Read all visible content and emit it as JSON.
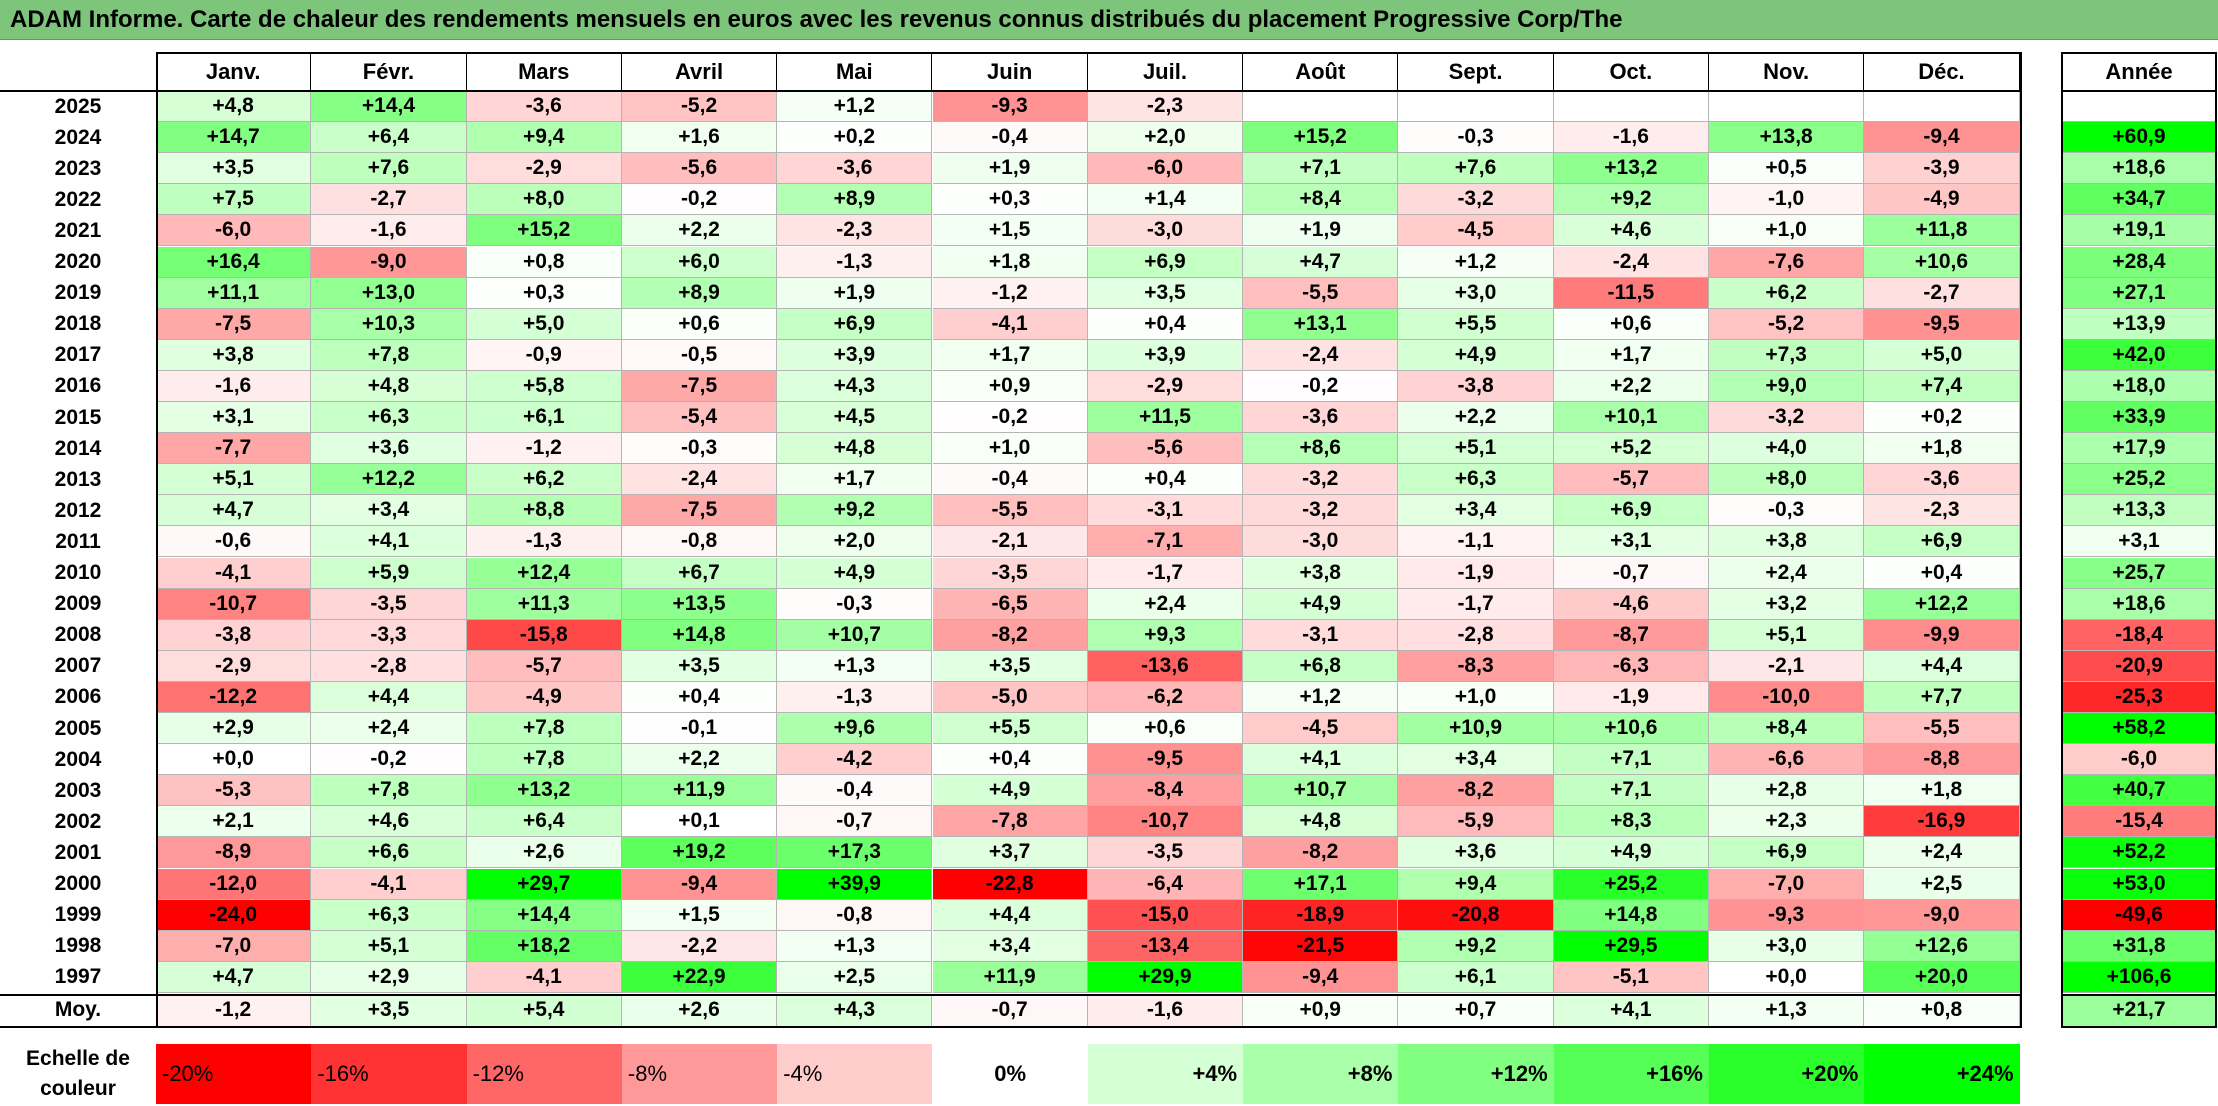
{
  "title": "ADAM Informe. Carte de chaleur des rendements mensuels en euros avec les revenus connus distribués du placement Progressive Corp/The",
  "colors": {
    "title_bg": "#7dc57a",
    "negative_max": "#ff0000",
    "neutral": "#ffffff",
    "positive_max": "#00ff00",
    "grid": "#b5b5b5"
  },
  "chart_data": {
    "type": "heatmap",
    "title": "ADAM Informe. Carte de chaleur des rendements mensuels en euros avec les revenus connus distribués du placement Progressive Corp/The",
    "columns": [
      "Janv.",
      "Févr.",
      "Mars",
      "Avril",
      "Mai",
      "Juin",
      "Juil.",
      "Août",
      "Sept.",
      "Oct.",
      "Nov.",
      "Déc."
    ],
    "year_header": "Année",
    "rows": [
      {
        "label": "2025",
        "values": [
          "+4,8",
          "+14,4",
          "-3,6",
          "-5,2",
          "+1,2",
          "-9,3",
          "-2,3",
          "",
          "",
          "",
          "",
          ""
        ],
        "year": ""
      },
      {
        "label": "2024",
        "values": [
          "+14,7",
          "+6,4",
          "+9,4",
          "+1,6",
          "+0,2",
          "-0,4",
          "+2,0",
          "+15,2",
          "-0,3",
          "-1,6",
          "+13,8",
          "-9,4"
        ],
        "year": "+60,9"
      },
      {
        "label": "2023",
        "values": [
          "+3,5",
          "+7,6",
          "-2,9",
          "-5,6",
          "-3,6",
          "+1,9",
          "-6,0",
          "+7,1",
          "+7,6",
          "+13,2",
          "+0,5",
          "-3,9"
        ],
        "year": "+18,6"
      },
      {
        "label": "2022",
        "values": [
          "+7,5",
          "-2,7",
          "+8,0",
          "-0,2",
          "+8,9",
          "+0,3",
          "+1,4",
          "+8,4",
          "-3,2",
          "+9,2",
          "-1,0",
          "-4,9"
        ],
        "year": "+34,7"
      },
      {
        "label": "2021",
        "values": [
          "-6,0",
          "-1,6",
          "+15,2",
          "+2,2",
          "-2,3",
          "+1,5",
          "-3,0",
          "+1,9",
          "-4,5",
          "+4,6",
          "+1,0",
          "+11,8"
        ],
        "year": "+19,1"
      },
      {
        "label": "2020",
        "values": [
          "+16,4",
          "-9,0",
          "+0,8",
          "+6,0",
          "-1,3",
          "+1,8",
          "+6,9",
          "+4,7",
          "+1,2",
          "-2,4",
          "-7,6",
          "+10,6"
        ],
        "year": "+28,4"
      },
      {
        "label": "2019",
        "values": [
          "+11,1",
          "+13,0",
          "+0,3",
          "+8,9",
          "+1,9",
          "-1,2",
          "+3,5",
          "-5,5",
          "+3,0",
          "-11,5",
          "+6,2",
          "-2,7"
        ],
        "year": "+27,1"
      },
      {
        "label": "2018",
        "values": [
          "-7,5",
          "+10,3",
          "+5,0",
          "+0,6",
          "+6,9",
          "-4,1",
          "+0,4",
          "+13,1",
          "+5,5",
          "+0,6",
          "-5,2",
          "-9,5"
        ],
        "year": "+13,9"
      },
      {
        "label": "2017",
        "values": [
          "+3,8",
          "+7,8",
          "-0,9",
          "-0,5",
          "+3,9",
          "+1,7",
          "+3,9",
          "-2,4",
          "+4,9",
          "+1,7",
          "+7,3",
          "+5,0"
        ],
        "year": "+42,0"
      },
      {
        "label": "2016",
        "values": [
          "-1,6",
          "+4,8",
          "+5,8",
          "-7,5",
          "+4,3",
          "+0,9",
          "-2,9",
          "-0,2",
          "-3,8",
          "+2,2",
          "+9,0",
          "+7,4"
        ],
        "year": "+18,0"
      },
      {
        "label": "2015",
        "values": [
          "+3,1",
          "+6,3",
          "+6,1",
          "-5,4",
          "+4,5",
          "-0,2",
          "+11,5",
          "-3,6",
          "+2,2",
          "+10,1",
          "-3,2",
          "+0,2"
        ],
        "year": "+33,9"
      },
      {
        "label": "2014",
        "values": [
          "-7,7",
          "+3,6",
          "-1,2",
          "-0,3",
          "+4,8",
          "+1,0",
          "-5,6",
          "+8,6",
          "+5,1",
          "+5,2",
          "+4,0",
          "+1,8"
        ],
        "year": "+17,9"
      },
      {
        "label": "2013",
        "values": [
          "+5,1",
          "+12,2",
          "+6,2",
          "-2,4",
          "+1,7",
          "-0,4",
          "+0,4",
          "-3,2",
          "+6,3",
          "-5,7",
          "+8,0",
          "-3,6"
        ],
        "year": "+25,2"
      },
      {
        "label": "2012",
        "values": [
          "+4,7",
          "+3,4",
          "+8,8",
          "-7,5",
          "+9,2",
          "-5,5",
          "-3,1",
          "-3,2",
          "+3,4",
          "+6,9",
          "-0,3",
          "-2,3"
        ],
        "year": "+13,3"
      },
      {
        "label": "2011",
        "values": [
          "-0,6",
          "+4,1",
          "-1,3",
          "-0,8",
          "+2,0",
          "-2,1",
          "-7,1",
          "-3,0",
          "-1,1",
          "+3,1",
          "+3,8",
          "+6,9"
        ],
        "year": "+3,1"
      },
      {
        "label": "2010",
        "values": [
          "-4,1",
          "+5,9",
          "+12,4",
          "+6,7",
          "+4,9",
          "-3,5",
          "-1,7",
          "+3,8",
          "-1,9",
          "-0,7",
          "+2,4",
          "+0,4"
        ],
        "year": "+25,7"
      },
      {
        "label": "2009",
        "values": [
          "-10,7",
          "-3,5",
          "+11,3",
          "+13,5",
          "-0,3",
          "-6,5",
          "+2,4",
          "+4,9",
          "-1,7",
          "-4,6",
          "+3,2",
          "+12,2"
        ],
        "year": "+18,6"
      },
      {
        "label": "2008",
        "values": [
          "-3,8",
          "-3,3",
          "-15,8",
          "+14,8",
          "+10,7",
          "-8,2",
          "+9,3",
          "-3,1",
          "-2,8",
          "-8,7",
          "+5,1",
          "-9,9"
        ],
        "year": "-18,4"
      },
      {
        "label": "2007",
        "values": [
          "-2,9",
          "-2,8",
          "-5,7",
          "+3,5",
          "+1,3",
          "+3,5",
          "-13,6",
          "+6,8",
          "-8,3",
          "-6,3",
          "-2,1",
          "+4,4"
        ],
        "year": "-20,9"
      },
      {
        "label": "2006",
        "values": [
          "-12,2",
          "+4,4",
          "-4,9",
          "+0,4",
          "-1,3",
          "-5,0",
          "-6,2",
          "+1,2",
          "+1,0",
          "-1,9",
          "-10,0",
          "+7,7"
        ],
        "year": "-25,3"
      },
      {
        "label": "2005",
        "values": [
          "+2,9",
          "+2,4",
          "+7,8",
          "-0,1",
          "+9,6",
          "+5,5",
          "+0,6",
          "-4,5",
          "+10,9",
          "+10,6",
          "+8,4",
          "-5,5"
        ],
        "year": "+58,2"
      },
      {
        "label": "2004",
        "values": [
          "+0,0",
          "-0,2",
          "+7,8",
          "+2,2",
          "-4,2",
          "+0,4",
          "-9,5",
          "+4,1",
          "+3,4",
          "+7,1",
          "-6,6",
          "-8,8"
        ],
        "year": "-6,0"
      },
      {
        "label": "2003",
        "values": [
          "-5,3",
          "+7,8",
          "+13,2",
          "+11,9",
          "-0,4",
          "+4,9",
          "-8,4",
          "+10,7",
          "-8,2",
          "+7,1",
          "+2,8",
          "+1,8"
        ],
        "year": "+40,7"
      },
      {
        "label": "2002",
        "values": [
          "+2,1",
          "+4,6",
          "+6,4",
          "+0,1",
          "-0,7",
          "-7,8",
          "-10,7",
          "+4,8",
          "-5,9",
          "+8,3",
          "+2,3",
          "-16,9"
        ],
        "year": "-15,4"
      },
      {
        "label": "2001",
        "values": [
          "-8,9",
          "+6,6",
          "+2,6",
          "+19,2",
          "+17,3",
          "+3,7",
          "-3,5",
          "-8,2",
          "+3,6",
          "+4,9",
          "+6,9",
          "+2,4"
        ],
        "year": "+52,2"
      },
      {
        "label": "2000",
        "values": [
          "-12,0",
          "-4,1",
          "+29,7",
          "-9,4",
          "+39,9",
          "-22,8",
          "-6,4",
          "+17,1",
          "+9,4",
          "+25,2",
          "-7,0",
          "+2,5"
        ],
        "year": "+53,0"
      },
      {
        "label": "1999",
        "values": [
          "-24,0",
          "+6,3",
          "+14,4",
          "+1,5",
          "-0,8",
          "+4,4",
          "-15,0",
          "-18,9",
          "-20,8",
          "+14,8",
          "-9,3",
          "-9,0"
        ],
        "year": "-49,6"
      },
      {
        "label": "1998",
        "values": [
          "-7,0",
          "+5,1",
          "+18,2",
          "-2,2",
          "+1,3",
          "+3,4",
          "-13,4",
          "-21,5",
          "+9,2",
          "+29,5",
          "+3,0",
          "+12,6"
        ],
        "year": "+31,8"
      },
      {
        "label": "1997",
        "values": [
          "+4,7",
          "+2,9",
          "-4,1",
          "+22,9",
          "+2,5",
          "+11,9",
          "+29,9",
          "-9,4",
          "+6,1",
          "-5,1",
          "+0,0",
          "+20,0"
        ],
        "year": "+106,6"
      }
    ],
    "average": {
      "label": "Moy.",
      "values": [
        "-1,2",
        "+3,5",
        "+5,4",
        "+2,6",
        "+4,3",
        "-0,7",
        "-1,6",
        "+0,9",
        "+0,7",
        "+4,1",
        "+1,3",
        "+0,8"
      ],
      "year": "+21,7"
    },
    "scale": {
      "label_line1": "Echelle de",
      "label_line2": "couleur",
      "steps": [
        {
          "label": "-20%",
          "value": -20
        },
        {
          "label": "-16%",
          "value": -16
        },
        {
          "label": "-12%",
          "value": -12
        },
        {
          "label": "-8%",
          "value": -8
        },
        {
          "label": "-4%",
          "value": -4
        },
        {
          "label": "0%",
          "value": 0
        },
        {
          "label": "+4%",
          "value": 4
        },
        {
          "label": "+8%",
          "value": 8
        },
        {
          "label": "+12%",
          "value": 12
        },
        {
          "label": "+16%",
          "value": 16
        },
        {
          "label": "+20%",
          "value": 20
        },
        {
          "label": "+24%",
          "value": 24
        }
      ]
    }
  }
}
